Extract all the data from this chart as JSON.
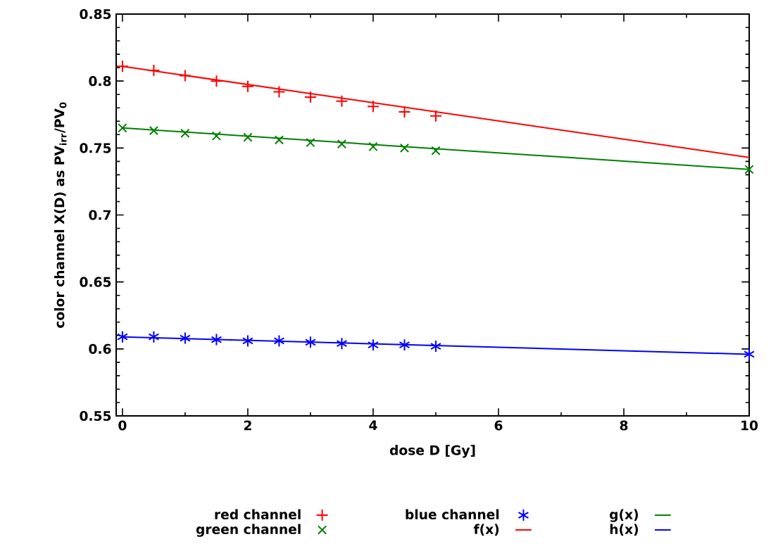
{
  "chart_data": {
    "type": "scatter",
    "xlabel": "dose D [Gy]",
    "ylabel": "color channel X(D) as PV$_{irr}$/PV$_{0}$",
    "xlim": [
      -0.1,
      10
    ],
    "ylim": [
      0.55,
      0.85
    ],
    "xticks": [
      0,
      2,
      4,
      6,
      8,
      10
    ],
    "yticks": [
      0.55,
      0.6,
      0.65,
      0.7,
      0.75,
      0.8,
      0.85
    ],
    "grid": false,
    "legend": "bottom",
    "series": [
      {
        "name": "red channel",
        "type": "scatter",
        "marker": "plus",
        "color": "#ff0000",
        "x": [
          0,
          0.5,
          1,
          1.5,
          2,
          2.5,
          3,
          3.5,
          4,
          4.5,
          5
        ],
        "values": [
          0.811,
          0.808,
          0.804,
          0.8,
          0.796,
          0.792,
          0.788,
          0.785,
          0.781,
          0.777,
          0.774
        ]
      },
      {
        "name": "green channel",
        "type": "scatter",
        "marker": "cross",
        "color": "#008000",
        "x": [
          0,
          0.5,
          1,
          1.5,
          2,
          2.5,
          3,
          3.5,
          4,
          4.5,
          5,
          10
        ],
        "values": [
          0.765,
          0.763,
          0.761,
          0.759,
          0.758,
          0.756,
          0.754,
          0.753,
          0.751,
          0.75,
          0.748,
          0.734
        ]
      },
      {
        "name": "blue channel",
        "type": "scatter",
        "color": "#0000ff",
        "x": [
          0,
          0.5,
          1,
          1.5,
          2,
          2.5,
          3,
          3.5,
          4,
          4.5,
          5,
          10
        ],
        "values": [
          0.609,
          0.609,
          0.608,
          0.607,
          0.606,
          0.606,
          0.605,
          0.604,
          0.603,
          0.603,
          0.602,
          0.596
        ]
      },
      {
        "name": "f(x)",
        "type": "line",
        "marker": "none",
        "color": "#ff0000",
        "x": [
          0,
          10
        ],
        "values": [
          0.811,
          0.743
        ]
      },
      {
        "name": "g(x)",
        "type": "line",
        "marker": "none",
        "color": "#008000",
        "x": [
          0,
          10
        ],
        "values": [
          0.765,
          0.734
        ]
      },
      {
        "name": "h(x)",
        "type": "line",
        "marker": "none",
        "color": "#0000ff",
        "x": [
          0,
          10
        ],
        "values": [
          0.609,
          0.596
        ]
      }
    ]
  }
}
